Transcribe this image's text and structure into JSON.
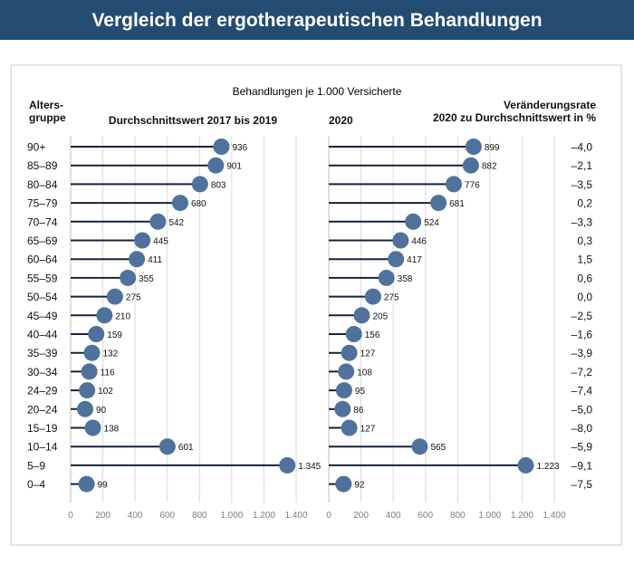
{
  "header": {
    "title": "Vergleich der ergotherapeutischen Behandlungen"
  },
  "chart_data": {
    "type": "lollipop",
    "title": "Behandlungen je 1.000 Versicherte",
    "row_header": "Alters-\ngruppe",
    "rate_header": "Veränderungsrate\n2020 zu Durchschnittswert in %",
    "categories": [
      "90+",
      "85–89",
      "80–84",
      "75–79",
      "70–74",
      "65–69",
      "60–64",
      "55–59",
      "50–54",
      "45–49",
      "40–44",
      "35–39",
      "30–34",
      "24–29",
      "20–24",
      "15–19",
      "10–14",
      "5–9",
      "0–4"
    ],
    "series": [
      {
        "name": "Durchschnittswert 2017 bis 2019",
        "values": [
          936,
          901,
          803,
          680,
          542,
          445,
          411,
          355,
          275,
          210,
          159,
          132,
          116,
          102,
          90,
          138,
          601,
          1345,
          99
        ],
        "value_labels": [
          "936",
          "901",
          "803",
          "680",
          "542",
          "445",
          "411",
          "355",
          "275",
          "210",
          "159",
          "132",
          "116",
          "102",
          "90",
          "138",
          "601",
          "1.345",
          "99"
        ],
        "xlim": [
          0,
          1400
        ],
        "ticks": [
          0,
          200,
          400,
          600,
          800,
          1000,
          1200,
          1400
        ],
        "tick_labels": [
          "0",
          "200",
          "400",
          "600",
          "800",
          "1.000",
          "1.200",
          "1.400"
        ]
      },
      {
        "name": "2020",
        "values": [
          899,
          882,
          776,
          681,
          524,
          446,
          417,
          358,
          275,
          205,
          156,
          127,
          108,
          95,
          86,
          127,
          565,
          1223,
          92
        ],
        "value_labels": [
          "899",
          "882",
          "776",
          "681",
          "524",
          "446",
          "417",
          "358",
          "275",
          "205",
          "156",
          "127",
          "108",
          "95",
          "86",
          "127",
          "565",
          "1.223",
          "92"
        ],
        "xlim": [
          0,
          1400
        ],
        "ticks": [
          0,
          200,
          400,
          600,
          800,
          1000,
          1200,
          1400
        ],
        "tick_labels": [
          "0",
          "200",
          "400",
          "600",
          "800",
          "1.000",
          "1.200",
          "1.400"
        ]
      }
    ],
    "change_rate_percent": [
      "–4,0",
      "–2,1",
      "–3,5",
      "0,2",
      "–3,3",
      "0,3",
      "1,5",
      "0,6",
      "0,0",
      "–2,5",
      "–1,6",
      "–3,9",
      "–7,2",
      "–7,4",
      "–5,0",
      "–8,0",
      "–5,9",
      "–9,1",
      "–7,5"
    ]
  },
  "colors": {
    "header_bg": "#244c72",
    "header_text": "#ffffff",
    "stem": "#14223b",
    "marker": "#4e729c",
    "grid": "#d9d9d9",
    "axis_text": "#7f7f7f",
    "text": "#111111",
    "frame": "#c8c8c8"
  }
}
